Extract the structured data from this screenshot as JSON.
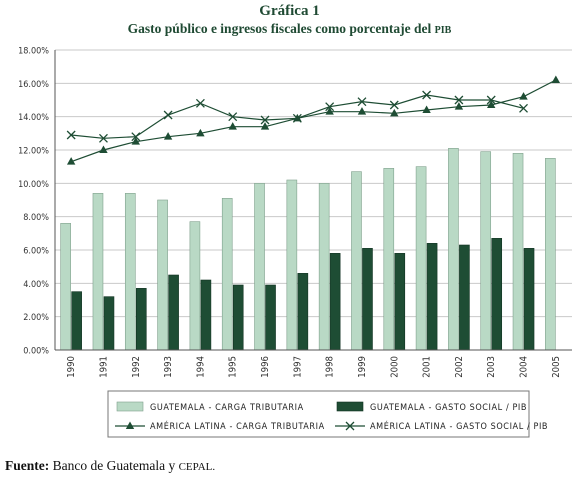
{
  "figure": {
    "title": "Gráfica 1",
    "subtitle_main": "Gasto público e ingresos fiscales como porcentaje del",
    "subtitle_abbr": "PIB"
  },
  "source": {
    "label": "Fuente:",
    "text_main": "Banco de Guatemala y",
    "text_abbr": "CEPAL."
  },
  "chart_data": {
    "type": "bar",
    "categories": [
      "1990",
      "1991",
      "1992",
      "1993",
      "1994",
      "1995",
      "1996",
      "1997",
      "1998",
      "1999",
      "2000",
      "2001",
      "2002",
      "2003",
      "2004",
      "2005"
    ],
    "y_tick_labels": [
      "0.00%",
      "2.00%",
      "4.00%",
      "6.00%",
      "8.00%",
      "10.00%",
      "12.00%",
      "14.00%",
      "16.00%",
      "18.00%"
    ],
    "ylim": [
      0,
      18
    ],
    "series": [
      {
        "name": "GUATEMALA - CARGA TRIBUTARIA",
        "kind": "bar",
        "color": "#b9d9c5",
        "values": [
          7.6,
          9.4,
          9.4,
          9.0,
          7.7,
          9.1,
          10.0,
          10.2,
          10.0,
          10.7,
          10.9,
          11.0,
          12.1,
          11.9,
          11.8,
          11.5
        ]
      },
      {
        "name": "GUATEMALA - GASTO SOCIAL / PIB",
        "kind": "bar",
        "color": "#1e4d34",
        "values": [
          3.5,
          3.2,
          3.7,
          4.5,
          4.2,
          3.9,
          3.9,
          4.6,
          5.8,
          6.1,
          5.8,
          6.4,
          6.3,
          6.7,
          6.1,
          null
        ]
      },
      {
        "name": "AMÉRICA LATINA - CARGA TRIBUTARIA",
        "kind": "line",
        "marker": "triangle",
        "color": "#1e4d34",
        "values": [
          11.3,
          12.0,
          12.5,
          12.8,
          13.0,
          13.4,
          13.4,
          13.9,
          14.3,
          14.3,
          14.2,
          14.4,
          14.6,
          14.7,
          15.2,
          16.2
        ]
      },
      {
        "name": "AMÉRICA LATINA - GASTO SOCIAL / PIB",
        "kind": "line",
        "marker": "x",
        "color": "#1e4d34",
        "values": [
          12.9,
          12.7,
          12.8,
          14.1,
          14.8,
          14.0,
          13.8,
          13.9,
          14.6,
          14.9,
          14.7,
          15.3,
          15.0,
          15.0,
          14.5,
          null
        ]
      }
    ],
    "grid": true,
    "legend_position": "bottom"
  }
}
